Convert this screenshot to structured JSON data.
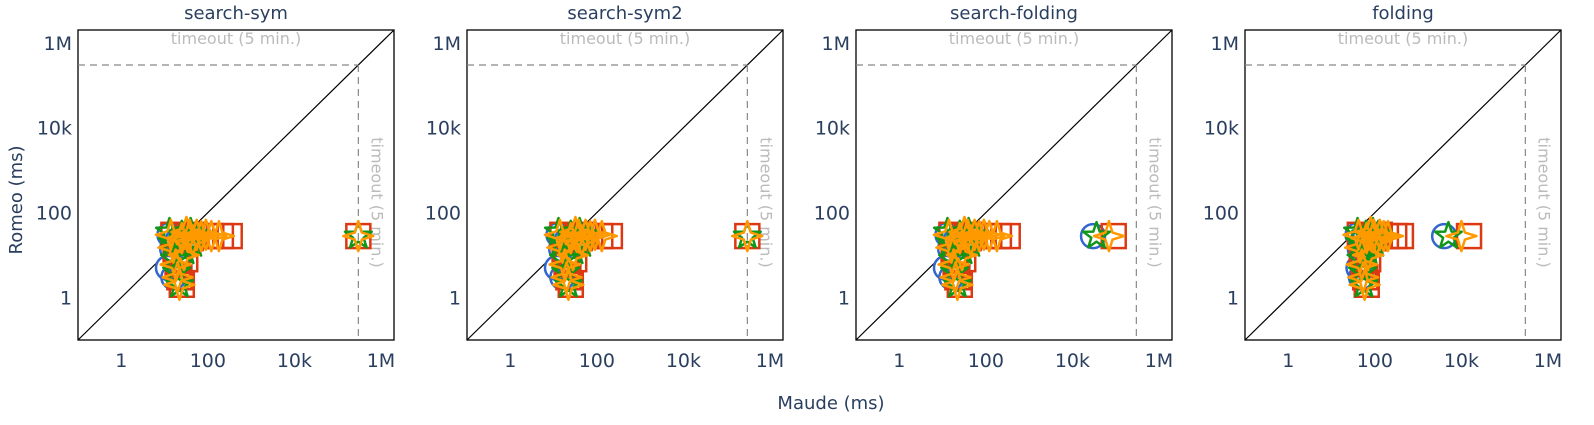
{
  "figure": {
    "xlabel": "Maude (ms)",
    "ylabel": "Romeo (ms)",
    "timeout_label": "timeout (5 min.)",
    "tick_labels": [
      "1",
      "100",
      "10k",
      "1M"
    ],
    "tick_values": [
      1,
      100,
      10000,
      1000000
    ]
  },
  "chart_data": [
    {
      "type": "scatter",
      "title": "search-sym",
      "xscale": "log",
      "yscale": "log",
      "xlim": [
        0.1,
        2000000
      ],
      "ylim": [
        0.1,
        2000000
      ],
      "timeout": 300000,
      "diagonal": true,
      "series": [
        {
          "marker": "circle",
          "color": "#3366cc",
          "points": [
            [
              13,
              30
            ],
            [
              15,
              14
            ],
            [
              18,
              8
            ],
            [
              20,
              22
            ],
            [
              16,
              3
            ],
            [
              25,
              28
            ],
            [
              12,
              5
            ]
          ]
        },
        {
          "marker": "square",
          "color": "#dc3912",
          "points": [
            [
              16,
              30
            ],
            [
              18,
              12
            ],
            [
              20,
              6
            ],
            [
              22,
              3
            ],
            [
              25,
              2
            ],
            [
              30,
              8
            ],
            [
              35,
              28
            ],
            [
              40,
              25
            ],
            [
              50,
              30
            ],
            [
              70,
              28
            ],
            [
              120,
              28
            ],
            [
              200,
              28
            ],
            [
              320,
              28
            ],
            [
              300000,
              28
            ]
          ]
        },
        {
          "marker": "star",
          "color": "#109618",
          "points": [
            [
              13,
              35
            ],
            [
              15,
              20
            ],
            [
              17,
              8
            ],
            [
              19,
              4
            ],
            [
              22,
              2
            ],
            [
              25,
              30
            ],
            [
              30,
              12
            ],
            [
              35,
              25
            ],
            [
              40,
              35
            ],
            [
              45,
              18
            ],
            [
              55,
              30
            ],
            [
              300000,
              28
            ]
          ]
        },
        {
          "marker": "diamond",
          "color": "#ff9900",
          "points": [
            [
              14,
              30
            ],
            [
              16,
              15
            ],
            [
              18,
              6
            ],
            [
              20,
              3
            ],
            [
              22,
              2
            ],
            [
              25,
              25
            ],
            [
              28,
              10
            ],
            [
              32,
              35
            ],
            [
              38,
              30
            ],
            [
              45,
              22
            ],
            [
              55,
              30
            ],
            [
              70,
              28
            ],
            [
              90,
              30
            ],
            [
              120,
              28
            ],
            [
              180,
              28
            ],
            [
              300000,
              28
            ]
          ]
        }
      ]
    },
    {
      "type": "scatter",
      "title": "search-sym2",
      "xscale": "log",
      "yscale": "log",
      "xlim": [
        0.1,
        2000000
      ],
      "ylim": [
        0.1,
        2000000
      ],
      "timeout": 300000,
      "diagonal": true,
      "series": [
        {
          "marker": "circle",
          "color": "#3366cc",
          "points": [
            [
              13,
              30
            ],
            [
              15,
              14
            ],
            [
              18,
              8
            ],
            [
              20,
              22
            ],
            [
              16,
              3
            ],
            [
              25,
              28
            ],
            [
              12,
              5
            ]
          ]
        },
        {
          "marker": "square",
          "color": "#dc3912",
          "points": [
            [
              16,
              30
            ],
            [
              18,
              12
            ],
            [
              20,
              6
            ],
            [
              22,
              3
            ],
            [
              25,
              2
            ],
            [
              30,
              8
            ],
            [
              35,
              28
            ],
            [
              40,
              25
            ],
            [
              50,
              30
            ],
            [
              70,
              28
            ],
            [
              120,
              28
            ],
            [
              200,
              28
            ],
            [
              300000,
              28
            ]
          ]
        },
        {
          "marker": "star",
          "color": "#109618",
          "points": [
            [
              13,
              35
            ],
            [
              15,
              20
            ],
            [
              17,
              8
            ],
            [
              19,
              4
            ],
            [
              22,
              2
            ],
            [
              25,
              30
            ],
            [
              30,
              12
            ],
            [
              35,
              25
            ],
            [
              40,
              35
            ],
            [
              45,
              18
            ],
            [
              55,
              30
            ],
            [
              300000,
              28
            ]
          ]
        },
        {
          "marker": "diamond",
          "color": "#ff9900",
          "points": [
            [
              14,
              30
            ],
            [
              16,
              15
            ],
            [
              18,
              6
            ],
            [
              20,
              3
            ],
            [
              22,
              2
            ],
            [
              25,
              25
            ],
            [
              28,
              10
            ],
            [
              32,
              35
            ],
            [
              38,
              30
            ],
            [
              45,
              22
            ],
            [
              55,
              30
            ],
            [
              70,
              28
            ],
            [
              90,
              30
            ],
            [
              130,
              28
            ],
            [
              300000,
              28
            ]
          ]
        }
      ]
    },
    {
      "type": "scatter",
      "title": "search-folding",
      "xscale": "log",
      "yscale": "log",
      "xlim": [
        0.1,
        2000000
      ],
      "ylim": [
        0.1,
        2000000
      ],
      "timeout": 300000,
      "diagonal": true,
      "series": [
        {
          "marker": "circle",
          "color": "#3366cc",
          "points": [
            [
              13,
              30
            ],
            [
              15,
              14
            ],
            [
              18,
              8
            ],
            [
              20,
              22
            ],
            [
              16,
              3
            ],
            [
              25,
              28
            ],
            [
              12,
              5
            ],
            [
              30000,
              28
            ]
          ]
        },
        {
          "marker": "square",
          "color": "#dc3912",
          "points": [
            [
              16,
              30
            ],
            [
              18,
              12
            ],
            [
              20,
              6
            ],
            [
              22,
              3
            ],
            [
              25,
              2
            ],
            [
              30,
              8
            ],
            [
              35,
              28
            ],
            [
              40,
              25
            ],
            [
              50,
              30
            ],
            [
              70,
              28
            ],
            [
              120,
              28
            ],
            [
              200,
              28
            ],
            [
              320,
              28
            ],
            [
              90000,
              28
            ]
          ]
        },
        {
          "marker": "star",
          "color": "#109618",
          "points": [
            [
              13,
              35
            ],
            [
              15,
              20
            ],
            [
              17,
              8
            ],
            [
              19,
              4
            ],
            [
              22,
              2
            ],
            [
              25,
              30
            ],
            [
              30,
              12
            ],
            [
              35,
              25
            ],
            [
              40,
              35
            ],
            [
              45,
              18
            ],
            [
              55,
              30
            ],
            [
              36000,
              28
            ]
          ]
        },
        {
          "marker": "diamond",
          "color": "#ff9900",
          "points": [
            [
              14,
              30
            ],
            [
              16,
              15
            ],
            [
              18,
              6
            ],
            [
              20,
              3
            ],
            [
              22,
              2
            ],
            [
              25,
              25
            ],
            [
              28,
              10
            ],
            [
              32,
              35
            ],
            [
              38,
              30
            ],
            [
              45,
              22
            ],
            [
              55,
              30
            ],
            [
              70,
              28
            ],
            [
              90,
              30
            ],
            [
              120,
              28
            ],
            [
              180,
              28
            ],
            [
              70000,
              28
            ]
          ]
        }
      ]
    },
    {
      "type": "scatter",
      "title": "folding",
      "xscale": "log",
      "yscale": "log",
      "xlim": [
        0.1,
        2000000
      ],
      "ylim": [
        0.1,
        2000000
      ],
      "timeout": 300000,
      "diagonal": true,
      "series": [
        {
          "marker": "circle",
          "color": "#3366cc",
          "points": [
            [
              40,
              30
            ],
            [
              45,
              14
            ],
            [
              50,
              8
            ],
            [
              55,
              22
            ],
            [
              48,
              3
            ],
            [
              60,
              28
            ],
            [
              42,
              5
            ],
            [
              4000,
              28
            ]
          ]
        },
        {
          "marker": "square",
          "color": "#dc3912",
          "points": [
            [
              45,
              30
            ],
            [
              50,
              12
            ],
            [
              55,
              6
            ],
            [
              60,
              3
            ],
            [
              65,
              2
            ],
            [
              70,
              8
            ],
            [
              80,
              28
            ],
            [
              100,
              25
            ],
            [
              130,
              30
            ],
            [
              180,
              28
            ],
            [
              280,
              28
            ],
            [
              400,
              28
            ],
            [
              15000,
              28
            ]
          ]
        },
        {
          "marker": "star",
          "color": "#109618",
          "points": [
            [
              40,
              35
            ],
            [
              44,
              20
            ],
            [
              48,
              8
            ],
            [
              52,
              4
            ],
            [
              56,
              2
            ],
            [
              62,
              30
            ],
            [
              70,
              12
            ],
            [
              80,
              25
            ],
            [
              90,
              35
            ],
            [
              100,
              18
            ],
            [
              120,
              30
            ],
            [
              5000,
              28
            ]
          ]
        },
        {
          "marker": "diamond",
          "color": "#ff9900",
          "points": [
            [
              42,
              30
            ],
            [
              46,
              15
            ],
            [
              50,
              6
            ],
            [
              54,
              3
            ],
            [
              58,
              2
            ],
            [
              64,
              25
            ],
            [
              70,
              10
            ],
            [
              80,
              35
            ],
            [
              95,
              30
            ],
            [
              110,
              22
            ],
            [
              130,
              30
            ],
            [
              160,
              28
            ],
            [
              200,
              28
            ],
            [
              10000,
              28
            ]
          ]
        }
      ]
    }
  ]
}
